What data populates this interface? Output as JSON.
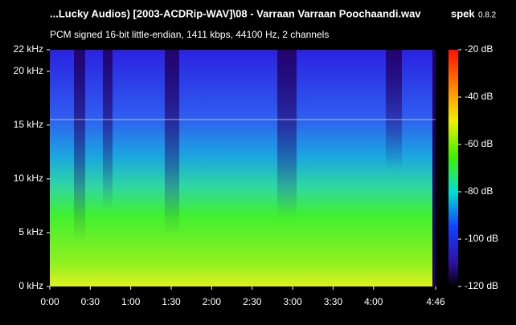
{
  "chart_data": {
    "type": "spectrogram",
    "title": "...Lucky Audios) [2003-ACDRip-WAV]\\08 - Varraan Varraan Poochaandi.wav",
    "app": "spek",
    "version": "0.8.2",
    "subtitle": "PCM signed 16-bit little-endian, 1411 kbps, 44100 Hz, 2 channels",
    "xlim": [
      0,
      286
    ],
    "xticks": [
      {
        "value": 0,
        "label": "0:00"
      },
      {
        "value": 30,
        "label": "0:30"
      },
      {
        "value": 60,
        "label": "1:00"
      },
      {
        "value": 90,
        "label": "1:30"
      },
      {
        "value": 120,
        "label": "2:00"
      },
      {
        "value": 150,
        "label": "2:30"
      },
      {
        "value": 180,
        "label": "3:00"
      },
      {
        "value": 210,
        "label": "3:30"
      },
      {
        "value": 240,
        "label": "4:00"
      },
      {
        "value": 286,
        "label": "4:46"
      }
    ],
    "ylim": [
      0,
      22
    ],
    "yticks": [
      {
        "value": 0,
        "label": "0 kHz"
      },
      {
        "value": 5,
        "label": "5 kHz"
      },
      {
        "value": 10,
        "label": "10 kHz"
      },
      {
        "value": 15,
        "label": "15 kHz"
      },
      {
        "value": 20,
        "label": "20 kHz"
      },
      {
        "value": 22,
        "label": "22 kHz"
      }
    ],
    "zlim": [
      -120,
      -20
    ],
    "zticks": [
      {
        "value": -20,
        "label": "-20 dB"
      },
      {
        "value": -40,
        "label": "-40 dB"
      },
      {
        "value": -60,
        "label": "-60 dB"
      },
      {
        "value": -80,
        "label": "-80 dB"
      },
      {
        "value": -100,
        "label": "-100 dB"
      },
      {
        "value": -120,
        "label": "-120 dB"
      }
    ]
  }
}
